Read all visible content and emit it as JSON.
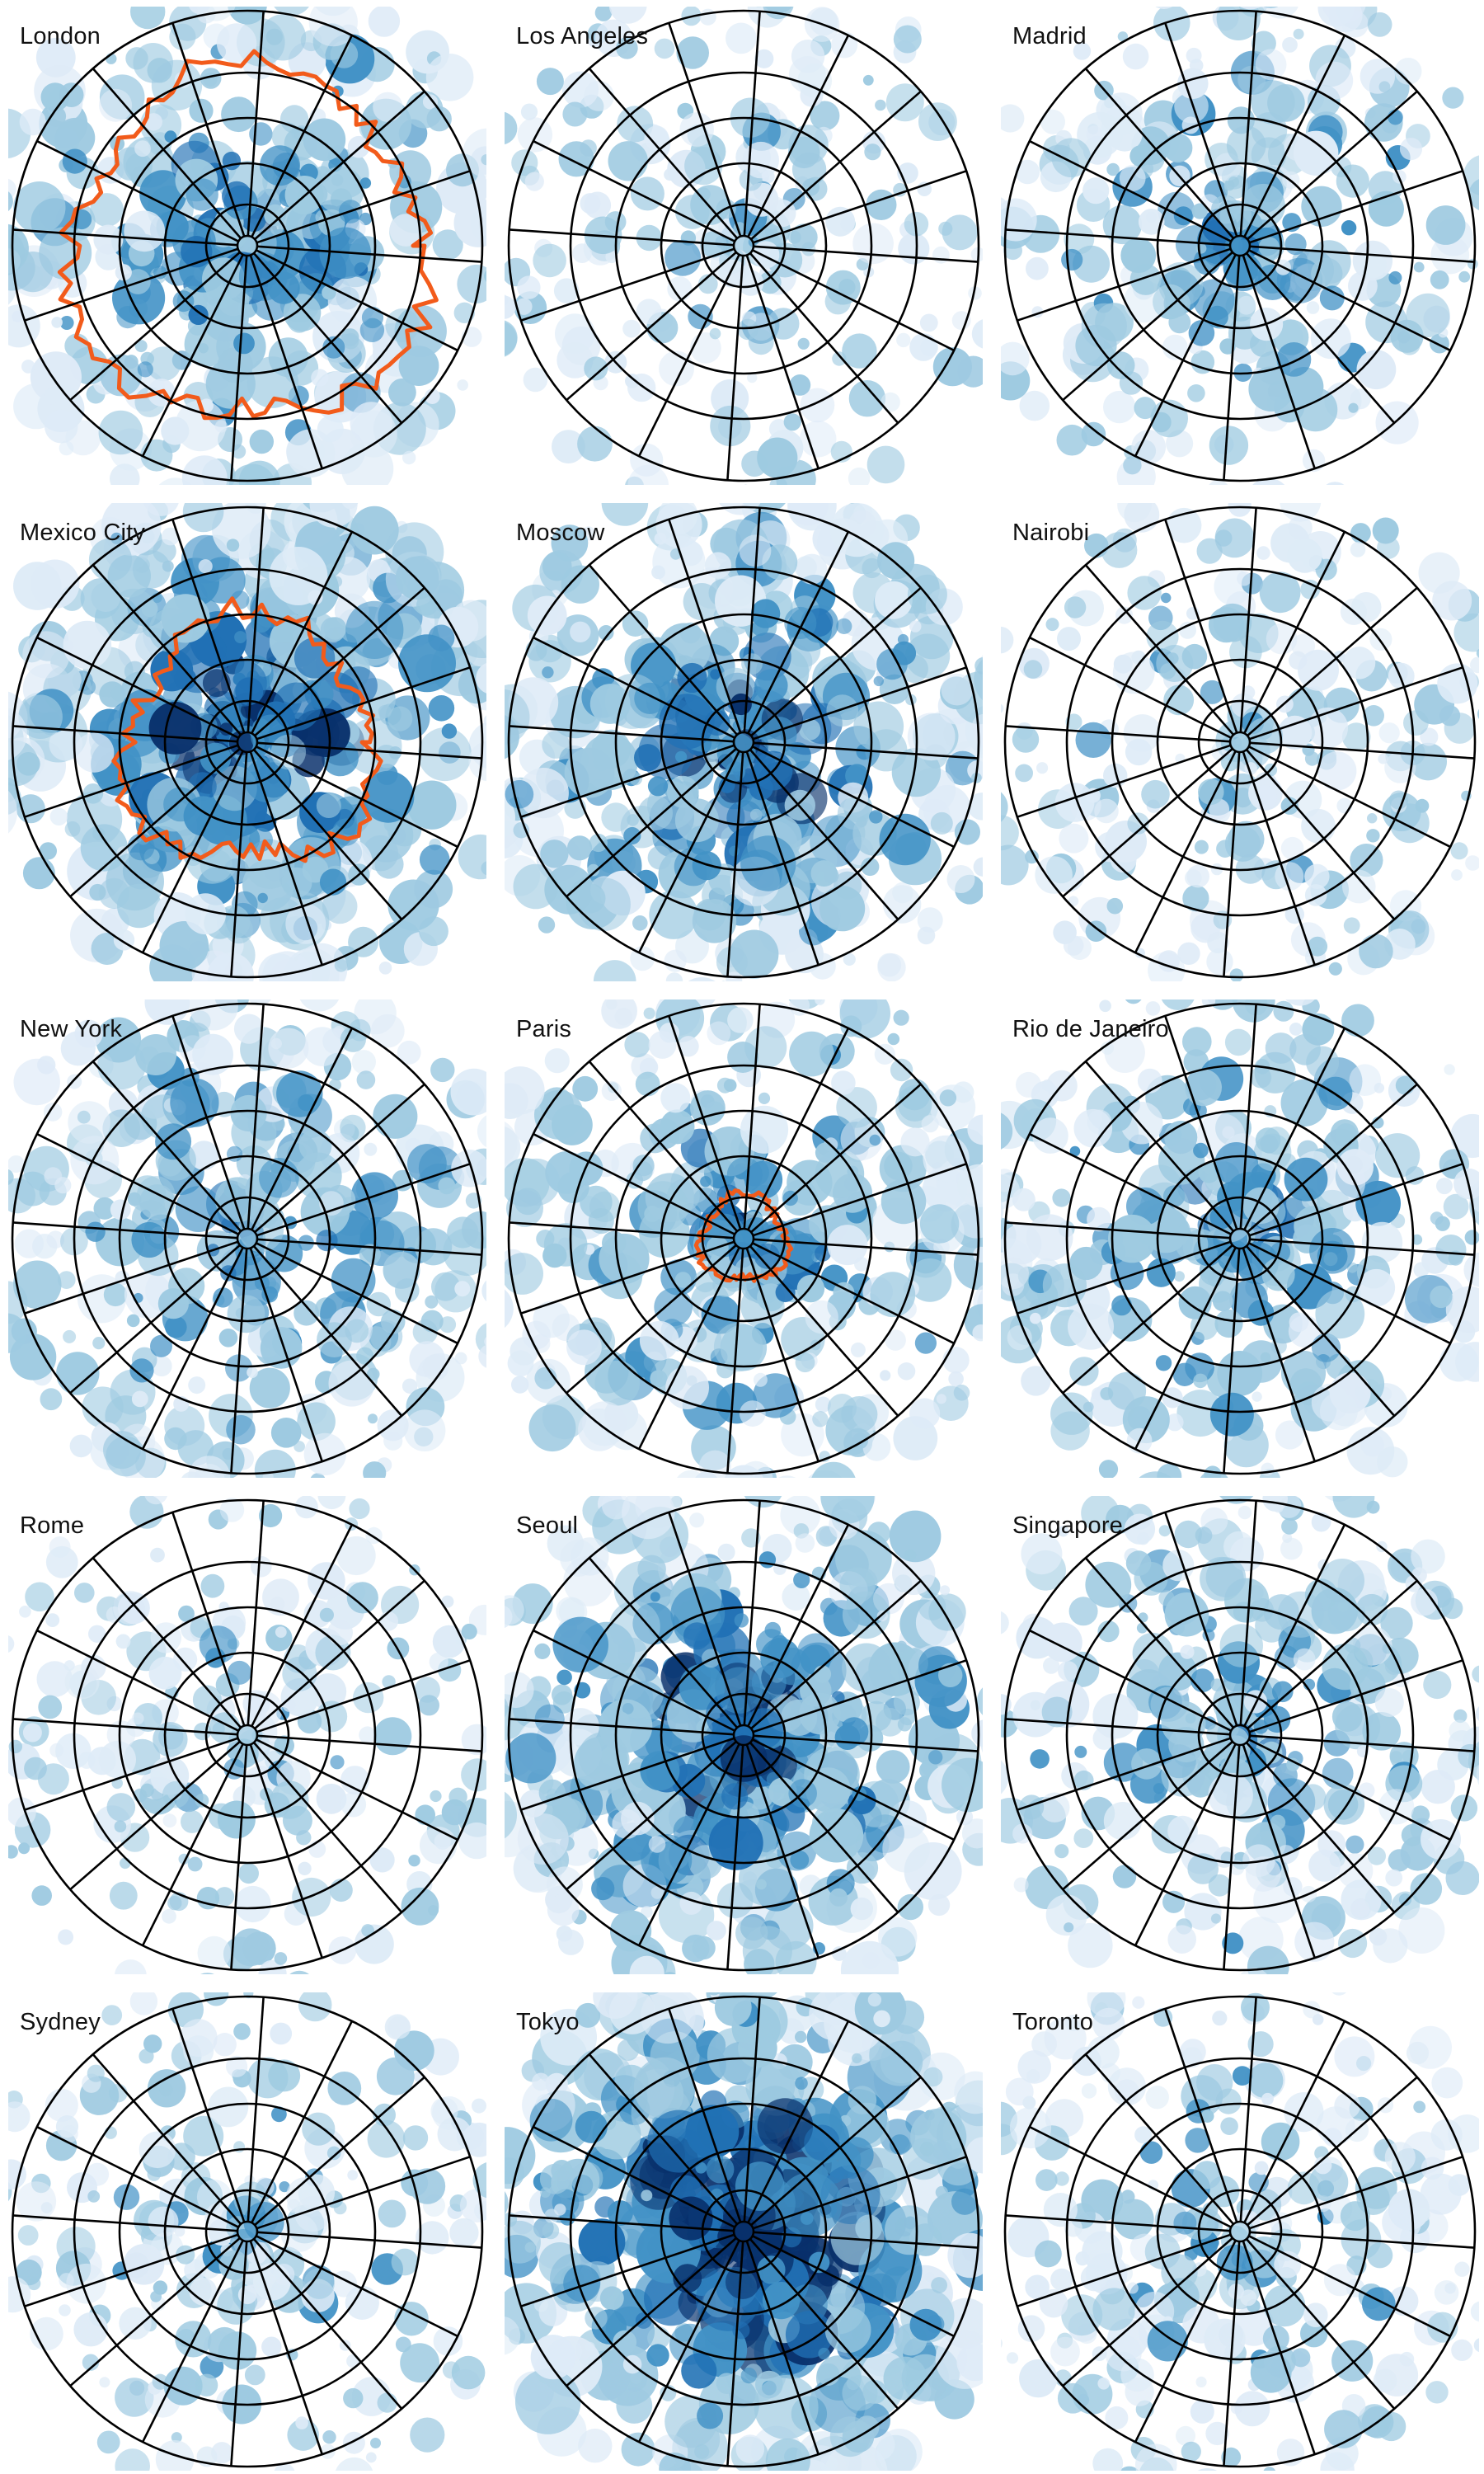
{
  "figure": {
    "background": "#ffffff",
    "palette": {
      "very_light": "#deebf7",
      "light": "#9ecae1",
      "medium": "#4292c6",
      "dark": "#2171b5",
      "darkest": "#08306b",
      "grid_line": "#000000",
      "boundary_line": "#f25b1b"
    },
    "grid": {
      "rings": 5,
      "sectors": 16
    },
    "panels": [
      {
        "city": "London",
        "density": 0.55,
        "boundary": "wide"
      },
      {
        "city": "Los Angeles",
        "density": 0.22,
        "boundary": null
      },
      {
        "city": "Madrid",
        "density": 0.35,
        "boundary": null
      },
      {
        "city": "Mexico City",
        "density": 0.75,
        "boundary": "mid"
      },
      {
        "city": "Moscow",
        "density": 0.65,
        "boundary": null
      },
      {
        "city": "Nairobi",
        "density": 0.25,
        "boundary": null
      },
      {
        "city": "New York",
        "density": 0.45,
        "boundary": null
      },
      {
        "city": "Paris",
        "density": 0.5,
        "boundary": "inner"
      },
      {
        "city": "Rio de Janeiro",
        "density": 0.45,
        "boundary": null
      },
      {
        "city": "Rome",
        "density": 0.2,
        "boundary": null
      },
      {
        "city": "Seoul",
        "density": 0.7,
        "boundary": null
      },
      {
        "city": "Singapore",
        "density": 0.4,
        "boundary": null
      },
      {
        "city": "Sydney",
        "density": 0.22,
        "boundary": null
      },
      {
        "city": "Tokyo",
        "density": 0.9,
        "boundary": null
      },
      {
        "city": "Toronto",
        "density": 0.28,
        "boundary": null
      }
    ]
  }
}
